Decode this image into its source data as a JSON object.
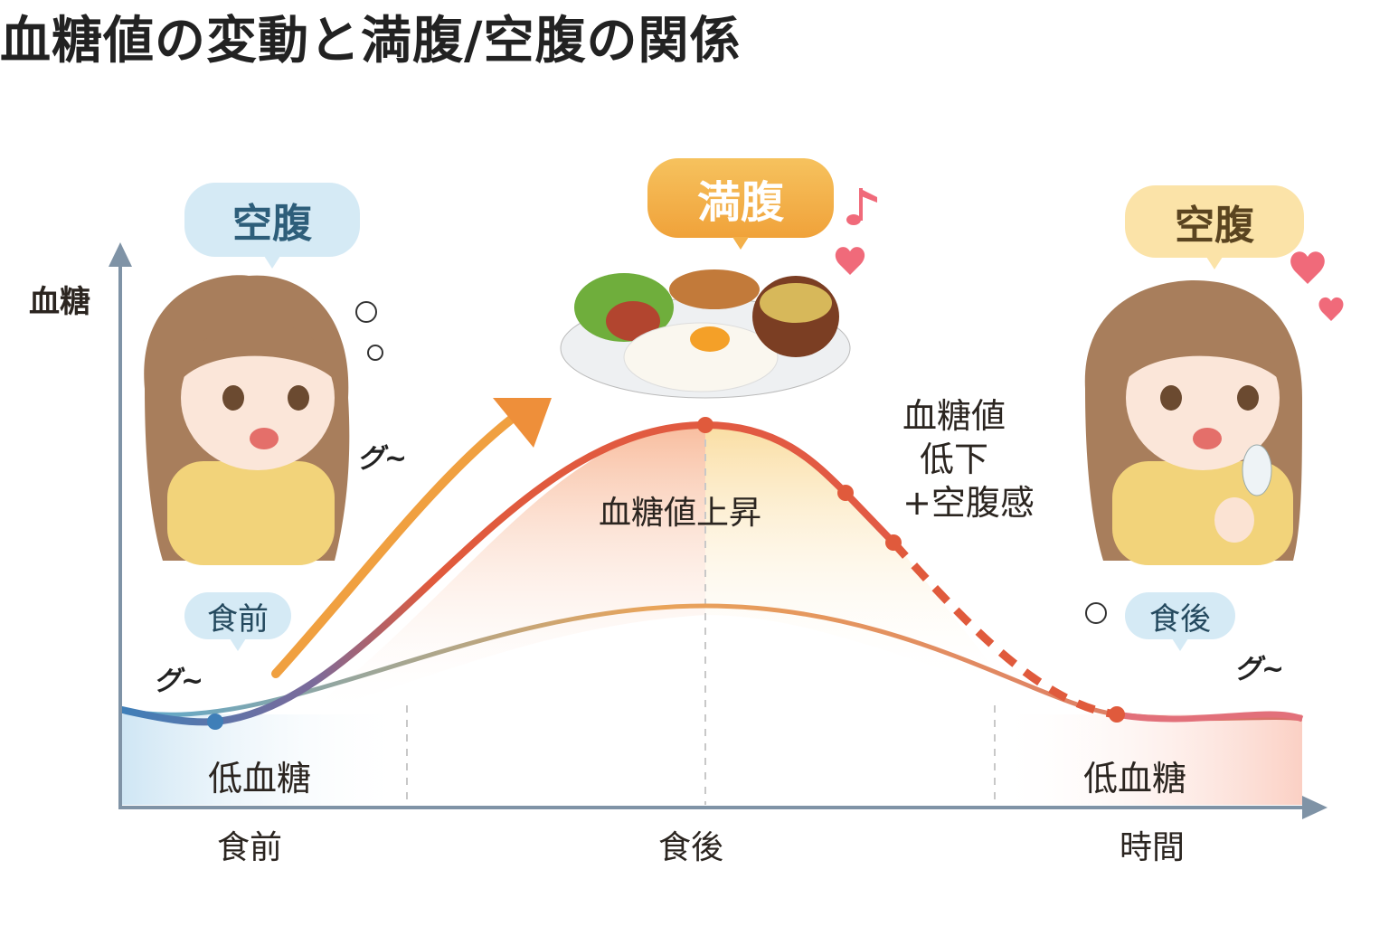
{
  "title": "血糖値の変動と満腹/空腹の関係",
  "y_axis_label": "血糖",
  "x_axis": {
    "ticks": [
      "食前",
      "食後",
      "時間"
    ]
  },
  "bubbles": {
    "left_hungry": "空腹",
    "center_full": "満腹",
    "right_hungry": "空腹",
    "before_meal": "食前",
    "after_meal": "食後"
  },
  "annotations": {
    "rise": "血糖値上昇",
    "drop_line1": "血糖値",
    "drop_line2": "低下",
    "drop_line3": "+空腹感",
    "low_left": "低血糖",
    "low_right": "低血糖",
    "stomach_sound": "グ~"
  },
  "colors": {
    "curve_start": "#3f7fb8",
    "curve_peak": "#e05a3c",
    "arrow": "#f0a040",
    "bubble_blue": "#d5eaf5",
    "bubble_orange": "#f3b04a",
    "bubble_yellow": "#fbe3a8",
    "axis": "#7f93a6"
  },
  "icons": [
    "girl-hungry-illustration",
    "meal-plate-illustration",
    "girl-with-spoon-illustration",
    "heart-icon",
    "music-note-icon",
    "puff-icon"
  ]
}
